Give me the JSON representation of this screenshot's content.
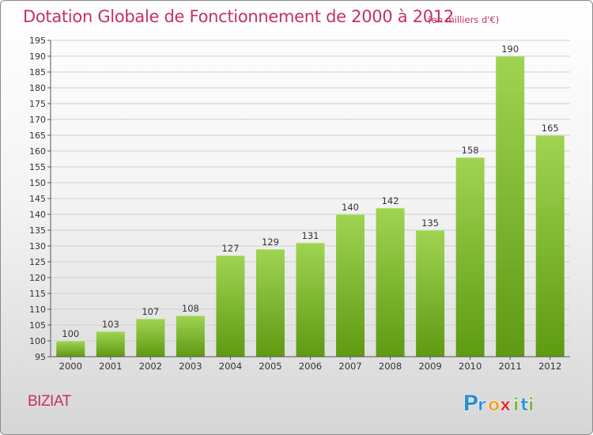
{
  "header": {
    "title": "Dotation Globale de Fonctionnement de 2000 à 2012",
    "unit": "(en milliers d'€)"
  },
  "footer": {
    "commune": "BIZIAT",
    "brand": "Proxiti",
    "brand_letters": [
      "P",
      "r",
      "o",
      "x",
      "i",
      "t",
      "i"
    ],
    "brand_colors": [
      "#2e8fd0",
      "#2e8fd0",
      "#f0a020",
      "#e03030",
      "#7ab23a",
      "#2e8fd0",
      "#7ab23a"
    ]
  },
  "colors": {
    "title": "#c4325a",
    "bar_top": "#9fd452",
    "bar_bottom": "#5e9a12",
    "grid": "#cfcfcf",
    "axis": "#555555"
  },
  "chart_data": {
    "type": "bar",
    "categories": [
      "2000",
      "2001",
      "2002",
      "2003",
      "2004",
      "2005",
      "2006",
      "2007",
      "2008",
      "2009",
      "2010",
      "2011",
      "2012"
    ],
    "values": [
      100,
      103,
      107,
      108,
      127,
      129,
      131,
      140,
      142,
      135,
      158,
      190,
      165
    ],
    "title": "Dotation Globale de Fonctionnement de 2000 à 2012",
    "subtitle": "(en milliers d'€)",
    "xlabel": "",
    "ylabel": "",
    "ylim": [
      95,
      195
    ],
    "yticks": [
      95,
      100,
      105,
      110,
      115,
      120,
      125,
      130,
      135,
      140,
      145,
      150,
      155,
      160,
      165,
      170,
      175,
      180,
      185,
      190,
      195
    ],
    "grid": true,
    "data_labels": true
  }
}
